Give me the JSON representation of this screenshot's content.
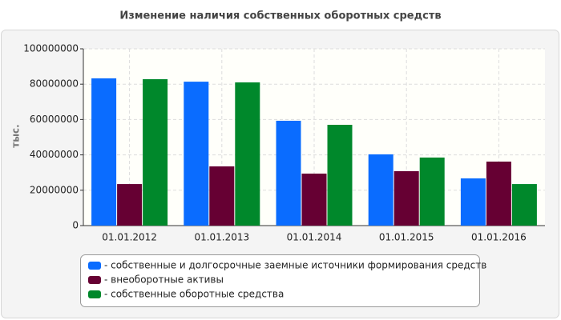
{
  "chart_data": {
    "type": "bar",
    "title": "Изменение наличия собственных оборотных средств",
    "y_label": "тыс.",
    "categories": [
      "01.01.2012",
      "01.01.2013",
      "01.01.2014",
      "01.01.2015",
      "01.01.2016"
    ],
    "series": [
      {
        "name": "- собственные и долгосрочные заемные источники формирования средств",
        "color": "#0a6cff",
        "values": [
          83300000,
          81400000,
          59300000,
          40300000,
          26700000
        ]
      },
      {
        "name": "- внеоборотные активы",
        "color": "#660033",
        "values": [
          23500000,
          33500000,
          29400000,
          30800000,
          36200000
        ]
      },
      {
        "name": "- собственные оборотные средства",
        "color": "#00882b",
        "values": [
          82800000,
          81000000,
          57000000,
          38500000,
          23500000
        ]
      }
    ],
    "ylim": [
      0,
      100000000
    ],
    "yticks": [
      0,
      20000000,
      40000000,
      60000000,
      80000000,
      100000000
    ],
    "grid": true,
    "legend": "bottom"
  }
}
